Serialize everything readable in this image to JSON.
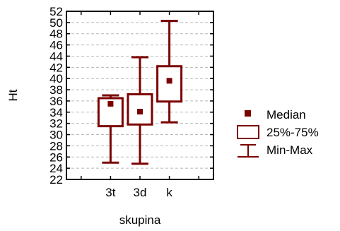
{
  "chart_data": {
    "type": "boxplot",
    "title": "",
    "xlabel": "skupina",
    "ylabel": "Ht",
    "ylim": [
      22,
      52
    ],
    "y_ticks": [
      "22",
      "24",
      "26",
      "28",
      "30",
      "32",
      "34",
      "36",
      "38",
      "40",
      "42",
      "44",
      "46",
      "48",
      "50",
      "52"
    ],
    "categories": [
      "3t",
      "3d",
      "k"
    ],
    "series": [
      {
        "category": "3t",
        "median": 35.5,
        "q1": 31.5,
        "q3": 36.5,
        "min": 25.0,
        "max": 37.0
      },
      {
        "category": "3d",
        "median": 34.1,
        "q1": 31.8,
        "q3": 37.2,
        "min": 24.8,
        "max": 43.8
      },
      {
        "category": "k",
        "median": 39.6,
        "q1": 35.9,
        "q3": 42.2,
        "min": 32.2,
        "max": 50.3
      }
    ],
    "legend": {
      "position": "right",
      "items": [
        {
          "symbol": "median-marker",
          "label": "Median"
        },
        {
          "symbol": "box",
          "label": "25%-75%"
        },
        {
          "symbol": "whisker",
          "label": "Min-Max"
        }
      ]
    },
    "grid": true,
    "colors": {
      "box": "#7b0000",
      "grid": "#b8b8b8",
      "axis": "#000000"
    }
  }
}
